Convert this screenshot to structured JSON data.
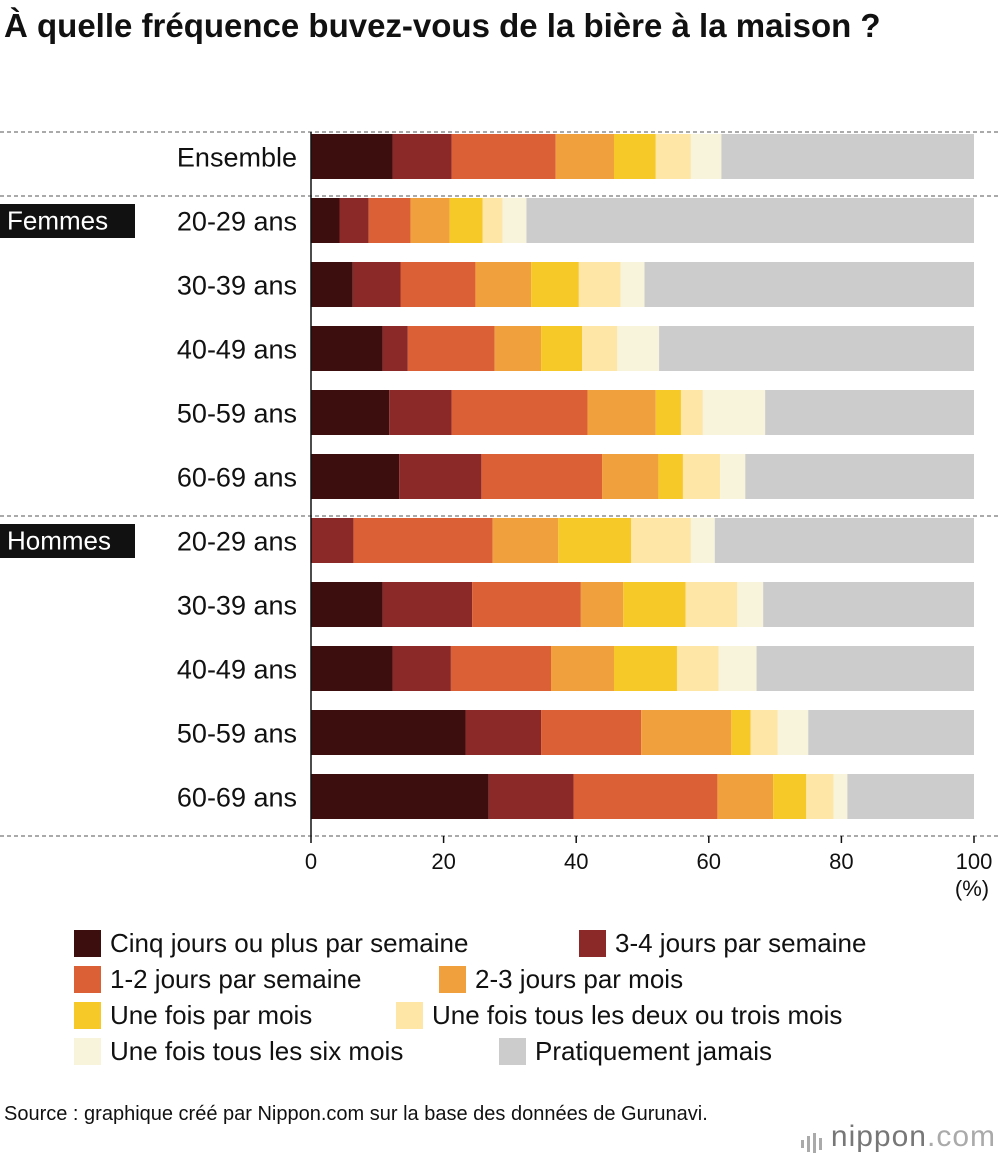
{
  "title": "À quelle fréquence buvez-vous de la bière à la maison ?",
  "chart_data": {
    "type": "bar",
    "orientation": "horizontal",
    "stacked": true,
    "title": "À quelle fréquence buvez-vous de la bière à la maison ?",
    "xlabel": "(%)",
    "ylabel": "",
    "xlim": [
      0,
      100
    ],
    "xticks": [
      0,
      20,
      40,
      60,
      80,
      100
    ],
    "grid": false,
    "groups": [
      {
        "label": "",
        "rows": [
          0
        ]
      },
      {
        "label": "Femmes",
        "rows": [
          1,
          2,
          3,
          4,
          5
        ]
      },
      {
        "label": "Hommes",
        "rows": [
          6,
          7,
          8,
          9,
          10
        ]
      }
    ],
    "categories": [
      "Ensemble",
      "20-29 ans",
      "30-39 ans",
      "40-49 ans",
      "50-59 ans",
      "60-69 ans",
      "20-29 ans",
      "30-39 ans",
      "40-49 ans",
      "50-59 ans",
      "60-69 ans"
    ],
    "series": [
      {
        "name": "Cinq jours ou plus par semaine",
        "color": "#3d0e0e",
        "values": [
          12.3,
          4.3,
          6.3,
          10.8,
          11.8,
          13.3,
          0,
          10.8,
          12.3,
          23.3,
          26.8
        ]
      },
      {
        "name": "3-4 jours par semaine",
        "color": "#8b2828",
        "values": [
          8.9,
          4.4,
          7.2,
          3.8,
          9.4,
          12.4,
          6.4,
          13.5,
          8.8,
          11.4,
          12.8
        ]
      },
      {
        "name": "1-2 jours par semaine",
        "color": "#dc6035",
        "values": [
          15.7,
          6.3,
          11.3,
          13.1,
          20.5,
          18.2,
          21.0,
          16.4,
          15.1,
          15.1,
          21.7
        ]
      },
      {
        "name": "2-3 jours par mois",
        "color": "#f0a03c",
        "values": [
          8.8,
          5.9,
          8.4,
          7.0,
          10.3,
          8.5,
          9.9,
          6.4,
          9.5,
          13.6,
          8.4
        ]
      },
      {
        "name": "Une fois par mois",
        "color": "#f7c928",
        "values": [
          6.3,
          5.0,
          7.2,
          6.2,
          3.8,
          3.7,
          11.0,
          9.4,
          9.5,
          2.9,
          5.0
        ]
      },
      {
        "name": "Une fois tous les deux ou trois mois",
        "color": "#fde6a6",
        "values": [
          5.3,
          3.0,
          6.3,
          5.3,
          3.3,
          5.6,
          9.0,
          7.8,
          6.3,
          4.1,
          4.1
        ]
      },
      {
        "name": "Une fois tous les six mois",
        "color": "#f7f4db",
        "values": [
          4.6,
          3.6,
          3.6,
          6.3,
          9.4,
          3.8,
          3.6,
          3.9,
          5.7,
          4.6,
          2.1
        ]
      },
      {
        "name": "Pratiquement jamais",
        "color": "#cccccc",
        "values": [
          38.1,
          67.5,
          49.7,
          47.5,
          31.5,
          34.5,
          39.1,
          31.8,
          32.8,
          25.0,
          19.1
        ]
      }
    ]
  },
  "legend": {
    "rows": [
      [
        0,
        1
      ],
      [
        2,
        3
      ],
      [
        4,
        5
      ],
      [
        6,
        7
      ]
    ]
  },
  "source": "Source : graphique créé par Nippon.com sur la base des données de Gurunavi.",
  "brand": {
    "name": "nippon",
    "suffix": ".com"
  }
}
